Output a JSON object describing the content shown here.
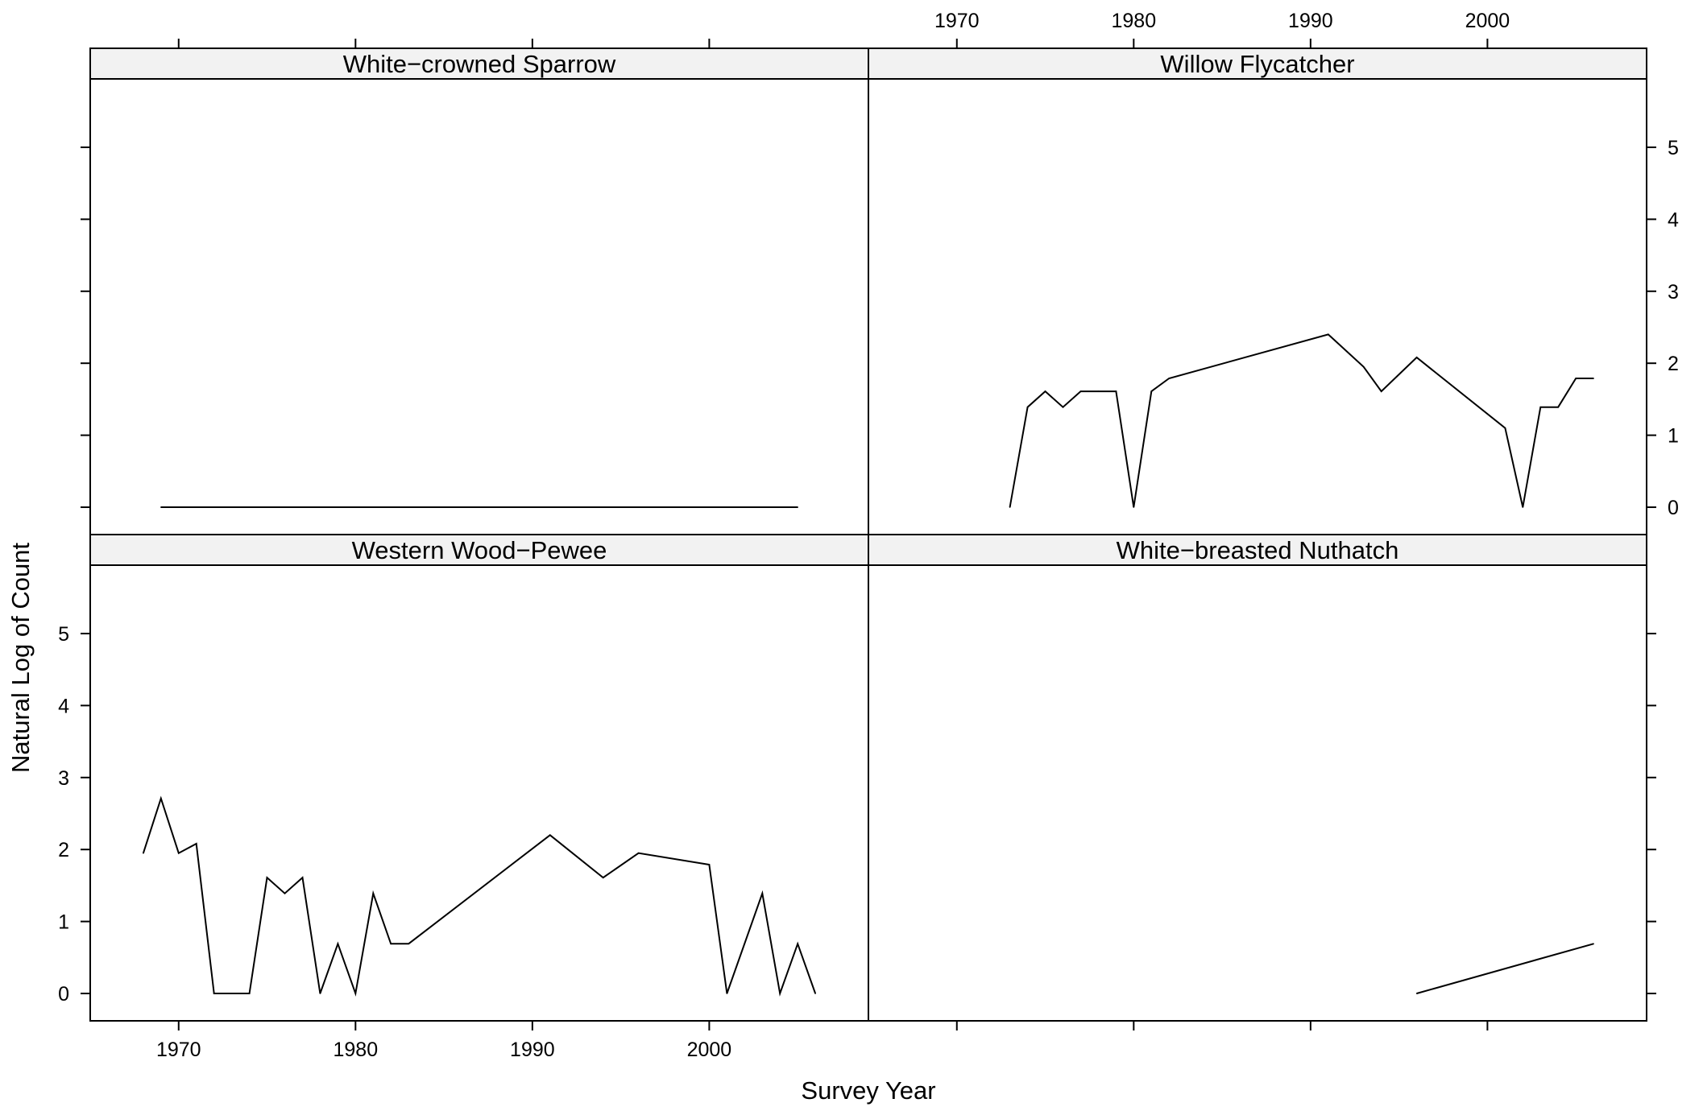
{
  "chart_data": {
    "type": "line",
    "xlabel": "Survey Year",
    "ylabel": "Natural Log of Count",
    "xlim": [
      1965,
      2009
    ],
    "ylim": [
      -0.38,
      5.95
    ],
    "x_ticks": [
      1970,
      1980,
      1990,
      2000
    ],
    "y_ticks": [
      0,
      1,
      2,
      3,
      4,
      5
    ],
    "grid": false,
    "legend": "none",
    "line_color": "#000000",
    "strip_color": "#f2f2f2",
    "panels": [
      {
        "name": "White−crowned Sparrow",
        "position": "top-left",
        "x": [
          1969,
          2005
        ],
        "y": [
          0,
          0
        ]
      },
      {
        "name": "Willow Flycatcher",
        "position": "top-right",
        "x": [
          1973,
          1974,
          1975,
          1976,
          1977,
          1978,
          1979,
          1980,
          1981,
          1982,
          1991,
          1993,
          1994,
          1996,
          2001,
          2002,
          2003,
          2004,
          2005,
          2006
        ],
        "y": [
          0,
          1.39,
          1.61,
          1.39,
          1.61,
          1.61,
          1.61,
          0,
          1.61,
          1.79,
          2.4,
          1.95,
          1.61,
          2.08,
          1.1,
          0,
          1.39,
          1.39,
          1.79,
          1.79
        ]
      },
      {
        "name": "Western Wood−Pewee",
        "position": "bottom-left",
        "x": [
          1968,
          1969,
          1970,
          1971,
          1972,
          1973,
          1974,
          1975,
          1976,
          1977,
          1978,
          1979,
          1980,
          1981,
          1982,
          1983,
          1991,
          1994,
          1996,
          2000,
          2001,
          2003,
          2004,
          2005,
          2006
        ],
        "y": [
          1.95,
          2.71,
          1.95,
          2.08,
          0,
          0,
          0,
          1.61,
          1.39,
          1.61,
          0,
          0.69,
          0,
          1.39,
          0.69,
          0.69,
          2.2,
          1.61,
          1.95,
          1.79,
          0,
          1.39,
          0,
          0.69,
          0
        ]
      },
      {
        "name": "White−breasted Nuthatch",
        "position": "bottom-right",
        "x": [
          1996,
          2006
        ],
        "y": [
          0,
          0.69
        ]
      }
    ]
  }
}
